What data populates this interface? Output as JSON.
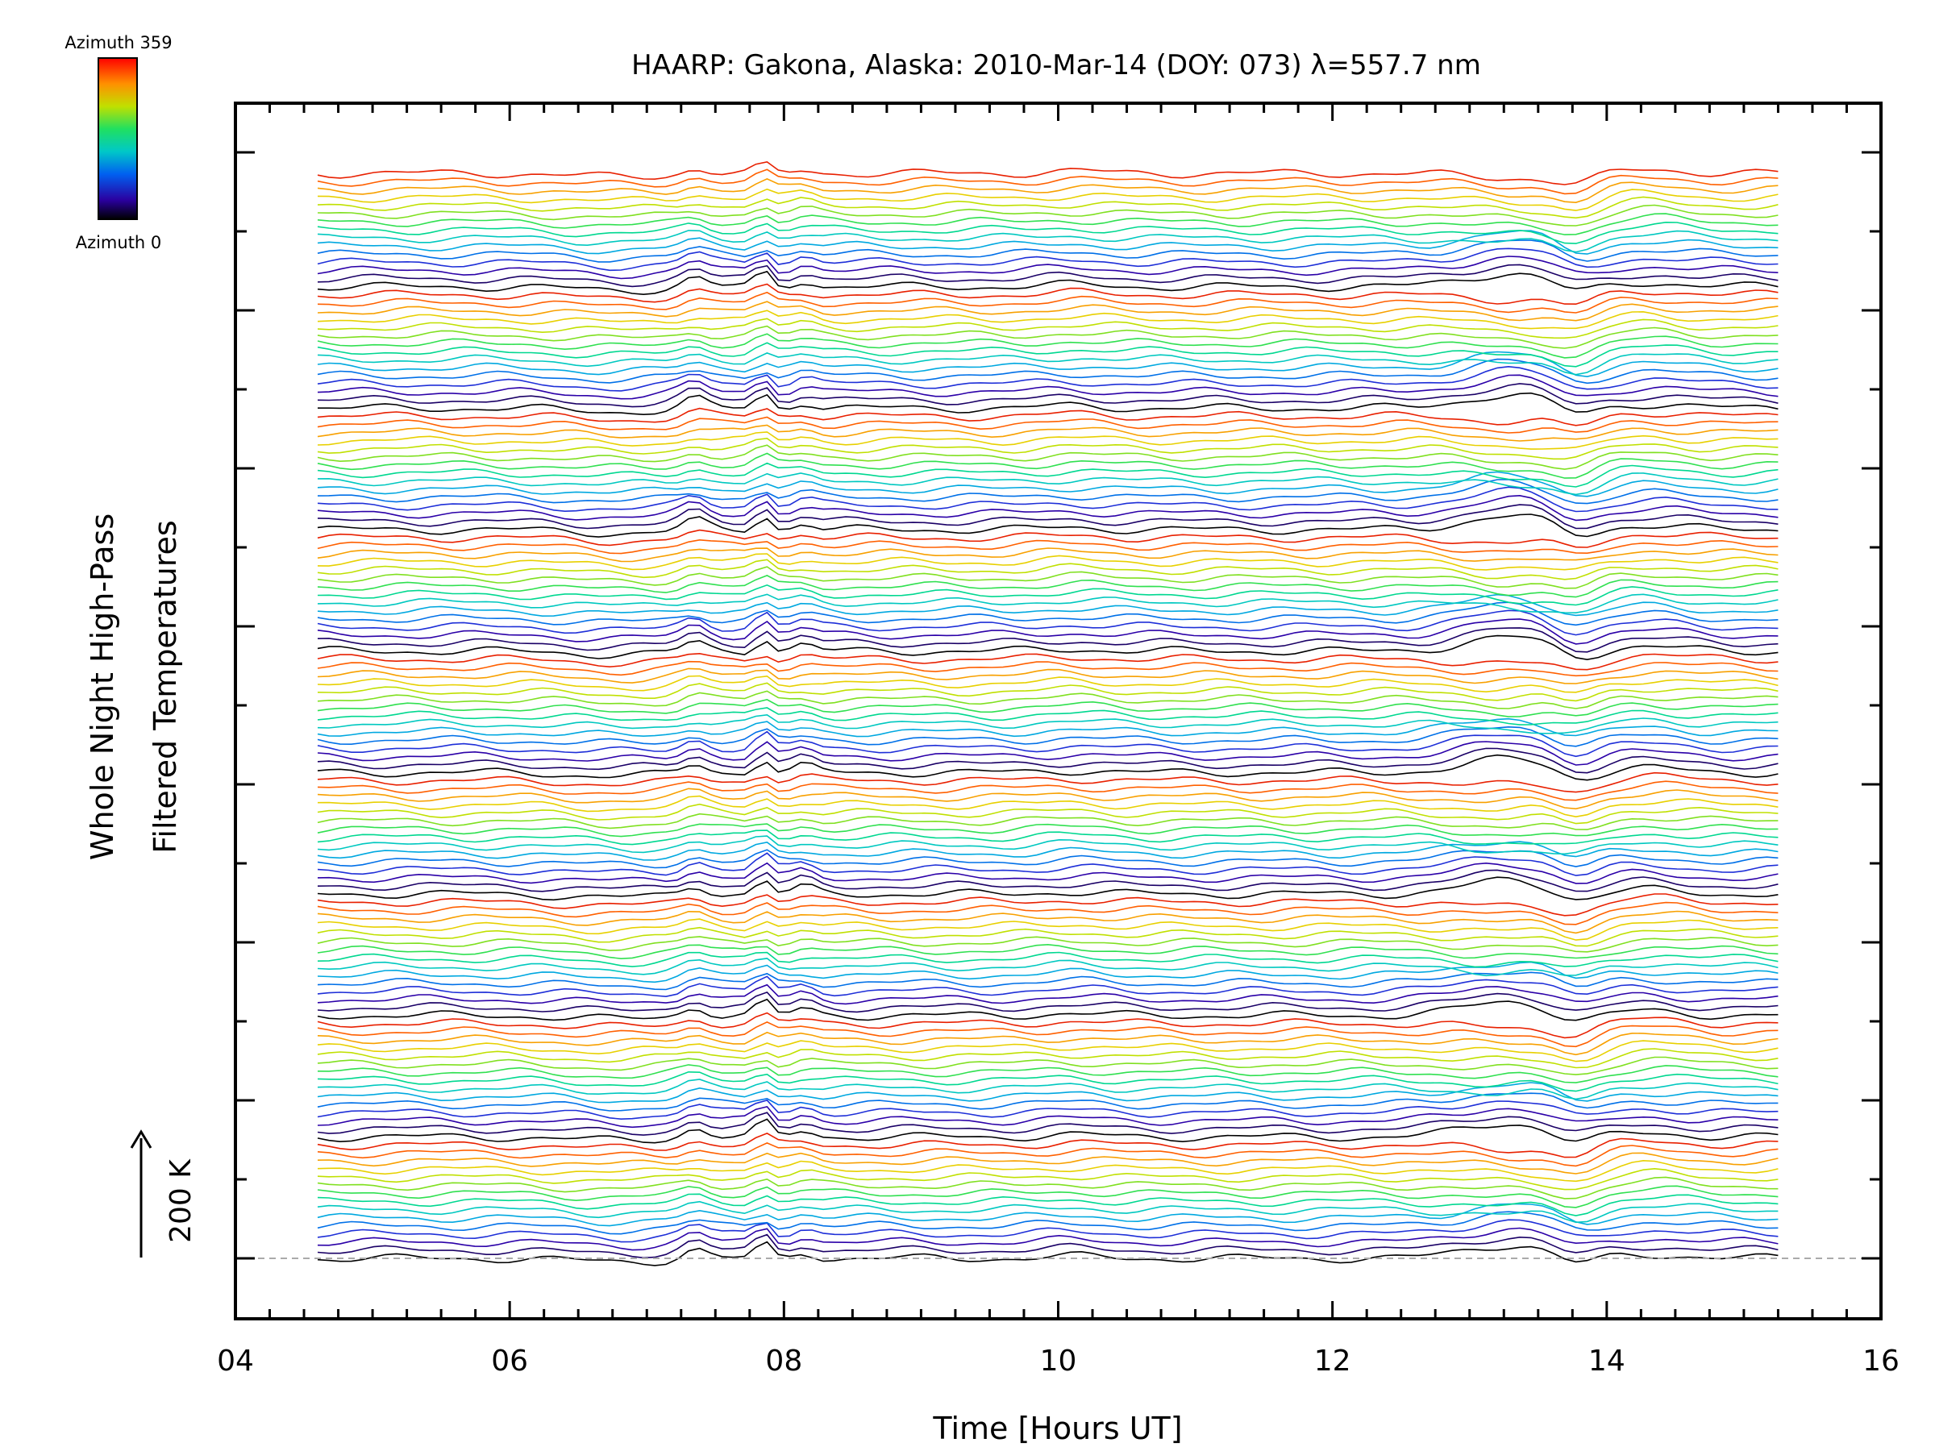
{
  "chart_data": {
    "type": "line",
    "title": "HAARP: Gakona,  Alaska: 2010-Mar-14 (DOY: 073) λ=557.7 nm",
    "xlabel": "Time [Hours UT]",
    "ylabel_line1": "Whole Night High-Pass",
    "ylabel_line2": "Filtered Temperatures",
    "x_ticks": [
      "04",
      "06",
      "08",
      "10",
      "12",
      "14",
      "16"
    ],
    "xlim": [
      4,
      16
    ],
    "x_start": 4.6,
    "x_end": 15.25,
    "scale_bar_label": "200 K",
    "colorbar": {
      "top_label": "Azimuth 359",
      "bottom_label": "Azimuth 0",
      "colormap": "rainbow"
    },
    "azimuth_cycle_colors": [
      "#000000",
      "#1a0066",
      "#2b00a8",
      "#1e2fd8",
      "#0070e8",
      "#00a8e0",
      "#00c8c0",
      "#00d890",
      "#30e050",
      "#80e020",
      "#c0e000",
      "#e8d000",
      "#f8a000",
      "#ff6000",
      "#e82000"
    ],
    "series_count": 135
  }
}
